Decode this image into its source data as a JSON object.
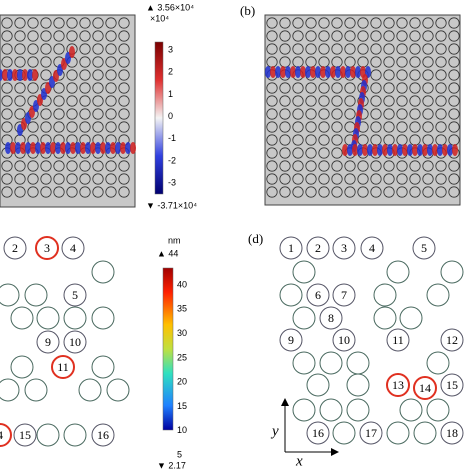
{
  "panel_a": {
    "colorbar": {
      "max_label": "▲ 3.56×10⁴",
      "unit": "×10⁴",
      "ticks": [
        "3",
        "2",
        "1",
        "0",
        "-1",
        "-2",
        "-3"
      ],
      "min_label": "▼ -3.71×10⁴"
    }
  },
  "panel_b": {
    "label": "(b)"
  },
  "panel_c": {
    "colorbar": {
      "unit": "nm",
      "max_label": "▲ 44",
      "ticks": [
        "40",
        "35",
        "30",
        "25",
        "20",
        "15",
        "10",
        "5"
      ],
      "min_label": "▼ 2.17"
    },
    "rods": [
      "2",
      "3",
      "4",
      "5",
      "9",
      "10",
      "11",
      "4",
      "15",
      "16"
    ]
  },
  "panel_d": {
    "label": "(d)",
    "rods": [
      "1",
      "2",
      "3",
      "4",
      "5",
      "6",
      "7",
      "8",
      "9",
      "10",
      "11",
      "12",
      "13",
      "14",
      "15",
      "16",
      "17",
      "18"
    ],
    "axis_y": "y",
    "axis_x": "x"
  }
}
